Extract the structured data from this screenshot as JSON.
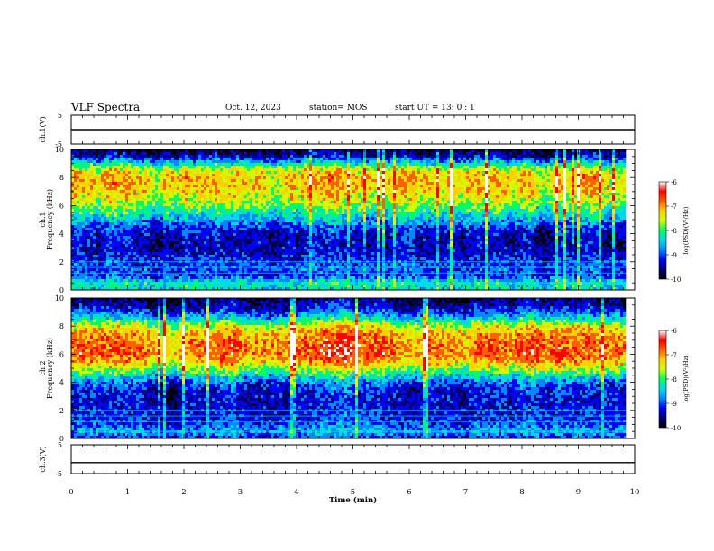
{
  "header": {
    "title": "VLF Spectra",
    "date": "Oct. 12, 2023",
    "station": "station= MOS",
    "start": "start  UT =   13: 0  : 1"
  },
  "colors": {
    "scale": [
      "#000000",
      "#00007a",
      "#0000ff",
      "#0088ff",
      "#00d8e8",
      "#00ff60",
      "#cfff00",
      "#ffd000",
      "#ff6000",
      "#ff0000",
      "#ffffff"
    ]
  },
  "chart_data": [
    {
      "type": "line",
      "panel": "ch1-waveform",
      "ylabel": "ch.1(V)",
      "ylim": [
        -5,
        5
      ],
      "y_ticks": [
        "5",
        "-5"
      ],
      "x": [
        0,
        10
      ],
      "values": [
        0,
        0
      ]
    },
    {
      "type": "heatmap",
      "panel": "ch1-spectrogram",
      "ylabel": "ch.1\nFrequency (kHz)",
      "ylabel_lines": [
        "ch.1",
        "Frequency (kHz)"
      ],
      "ylim": [
        0,
        10
      ],
      "y_ticks": [
        "0",
        "2",
        "4",
        "6",
        "8",
        "10"
      ],
      "xlim": [
        0,
        10
      ],
      "data_end_min": 9.85,
      "colorbar": {
        "label": "log(PSD)(V²/Hz)",
        "range": [
          -10,
          -6
        ],
        "ticks": [
          "-6",
          "-7",
          "-8",
          "-9",
          "-10"
        ]
      },
      "intensity_profile": {
        "freq_khz": [
          0,
          0.5,
          1,
          1.5,
          2,
          2.5,
          3,
          3.5,
          4,
          4.5,
          5,
          5.5,
          6,
          6.5,
          7,
          7.5,
          8,
          8.5,
          9,
          9.5,
          10
        ],
        "log_psd": [
          -8.4,
          -8.2,
          -9.1,
          -9.0,
          -9.1,
          -9.3,
          -9.4,
          -9.4,
          -9.3,
          -9.0,
          -8.6,
          -8.2,
          -7.8,
          -7.5,
          -7.3,
          -7.2,
          -7.2,
          -7.4,
          -8.3,
          -9.4,
          -9.8
        ]
      }
    },
    {
      "type": "heatmap",
      "panel": "ch2-spectrogram",
      "ylabel": "ch.2\nFrequency (kHz)",
      "ylabel_lines": [
        "ch.2",
        "Frequency (kHz)"
      ],
      "ylim": [
        0,
        10
      ],
      "y_ticks": [
        "0",
        "2",
        "4",
        "6",
        "8",
        "10"
      ],
      "xlim": [
        0,
        10
      ],
      "data_end_min": 9.85,
      "colorbar": {
        "label": "log(PSD)(V²/Hz)",
        "range": [
          -10,
          -6
        ],
        "ticks": [
          "-6",
          "-7",
          "-8",
          "-9",
          "-10"
        ]
      },
      "intensity_profile": {
        "freq_khz": [
          0,
          0.5,
          1,
          1.5,
          2,
          2.5,
          3,
          3.5,
          4,
          4.5,
          5,
          5.5,
          6,
          6.5,
          7,
          7.5,
          8,
          8.5,
          9,
          9.5,
          10
        ],
        "log_psd": [
          -9.2,
          -8.6,
          -9.0,
          -9.2,
          -9.2,
          -9.3,
          -9.3,
          -9.2,
          -8.9,
          -8.3,
          -7.6,
          -7.1,
          -6.8,
          -6.8,
          -6.9,
          -7.1,
          -7.5,
          -8.3,
          -9.0,
          -9.5,
          -9.7
        ]
      }
    },
    {
      "type": "line",
      "panel": "ch3-waveform",
      "ylabel": "ch.3(V)",
      "ylim": [
        -5,
        5
      ],
      "y_ticks": [
        "5",
        "-5"
      ],
      "x": [
        0,
        10
      ],
      "values": [
        -1.2,
        -1.2
      ]
    }
  ],
  "x_axis": {
    "label": "Time  (min)",
    "range": [
      0,
      10
    ],
    "ticks": [
      "0",
      "1",
      "2",
      "3",
      "4",
      "5",
      "6",
      "7",
      "8",
      "9",
      "10"
    ]
  }
}
